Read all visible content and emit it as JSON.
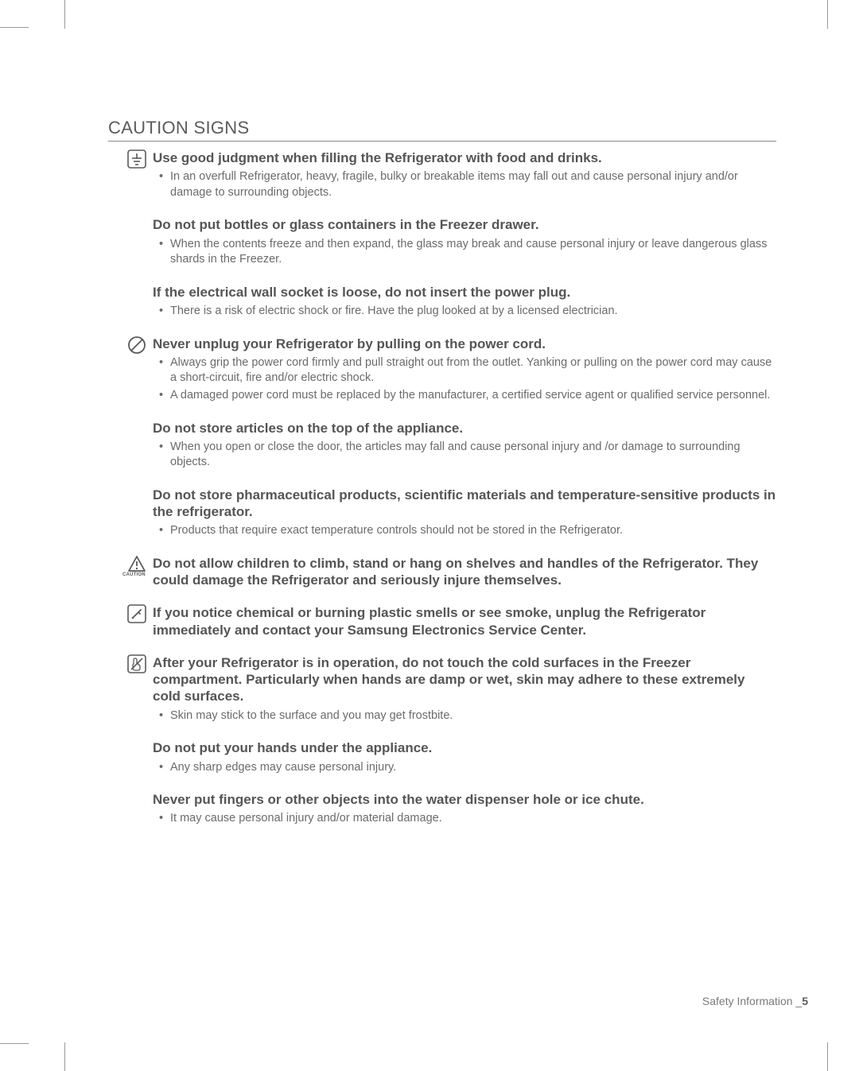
{
  "heading": "CAUTION SIGNS",
  "sections": [
    {
      "icon": "ground",
      "title": "Use good judgment when filling the Refrigerator with food and drinks.",
      "bullets": [
        "In an overfull Refrigerator, heavy, fragile, bulky or breakable items may fall out and cause personal injury and/or damage to surrounding objects."
      ]
    },
    {
      "title": "Do not put bottles or glass containers in the Freezer drawer.",
      "bullets": [
        "When the contents freeze and then expand, the glass may break and cause personal injury or leave dangerous glass shards in the Freezer."
      ]
    },
    {
      "title": "If the electrical wall socket is loose, do not insert the power plug.",
      "bullets": [
        "There is a risk of electric shock or fire. Have the plug looked at by a licensed electrician."
      ]
    },
    {
      "icon": "prohibit",
      "title": "Never unplug your Refrigerator by pulling on the power cord.",
      "bullets": [
        "Always grip the power cord firmly and pull straight out from the outlet. Yanking or pulling on the power cord may cause a short-circuit, fire and/or electric shock.",
        "A damaged power cord must be replaced by the manufacturer, a certified service agent or qualified service personnel."
      ]
    },
    {
      "title": "Do not store articles on the top of the appliance.",
      "bullets": [
        "When you open or close the door, the articles may fall and cause personal injury and /or damage to surrounding objects."
      ]
    },
    {
      "title": "Do not store pharmaceutical products, scientific materials and temperature-sensitive products in the refrigerator.",
      "bullets": [
        "Products that require exact temperature controls should not be stored in the Refrigerator."
      ]
    },
    {
      "icon": "caution",
      "title": "Do not allow children to climb, stand or hang on shelves and handles of the Refrigerator. They could damage the Refrigerator and seriously injure themselves."
    },
    {
      "icon": "disassemble",
      "title": "If you notice chemical or burning plastic smells or see smoke, unplug the Refrigerator immediately and contact your Samsung Electronics Service Center."
    },
    {
      "icon": "notouch",
      "title": "After your Refrigerator is in operation, do not touch the cold surfaces in the Freezer compartment. Particularly when hands are damp or wet, skin may adhere to these extremely cold surfaces.",
      "bullets": [
        "Skin may stick to the surface and you may get frostbite."
      ]
    },
    {
      "title": "Do not put your hands under the appliance.",
      "bullets": [
        "Any sharp edges may cause personal injury."
      ]
    },
    {
      "title": "Never put fingers or other objects into the water dispenser hole or ice chute.",
      "bullets": [
        "It may cause personal injury and/or material damage."
      ]
    }
  ],
  "footer": {
    "label": "Safety Information _",
    "page": "5"
  },
  "colors": {
    "text": "#5a5a5a",
    "body": "#6b6b6b",
    "rule": "#888888",
    "bg": "#ffffff"
  }
}
